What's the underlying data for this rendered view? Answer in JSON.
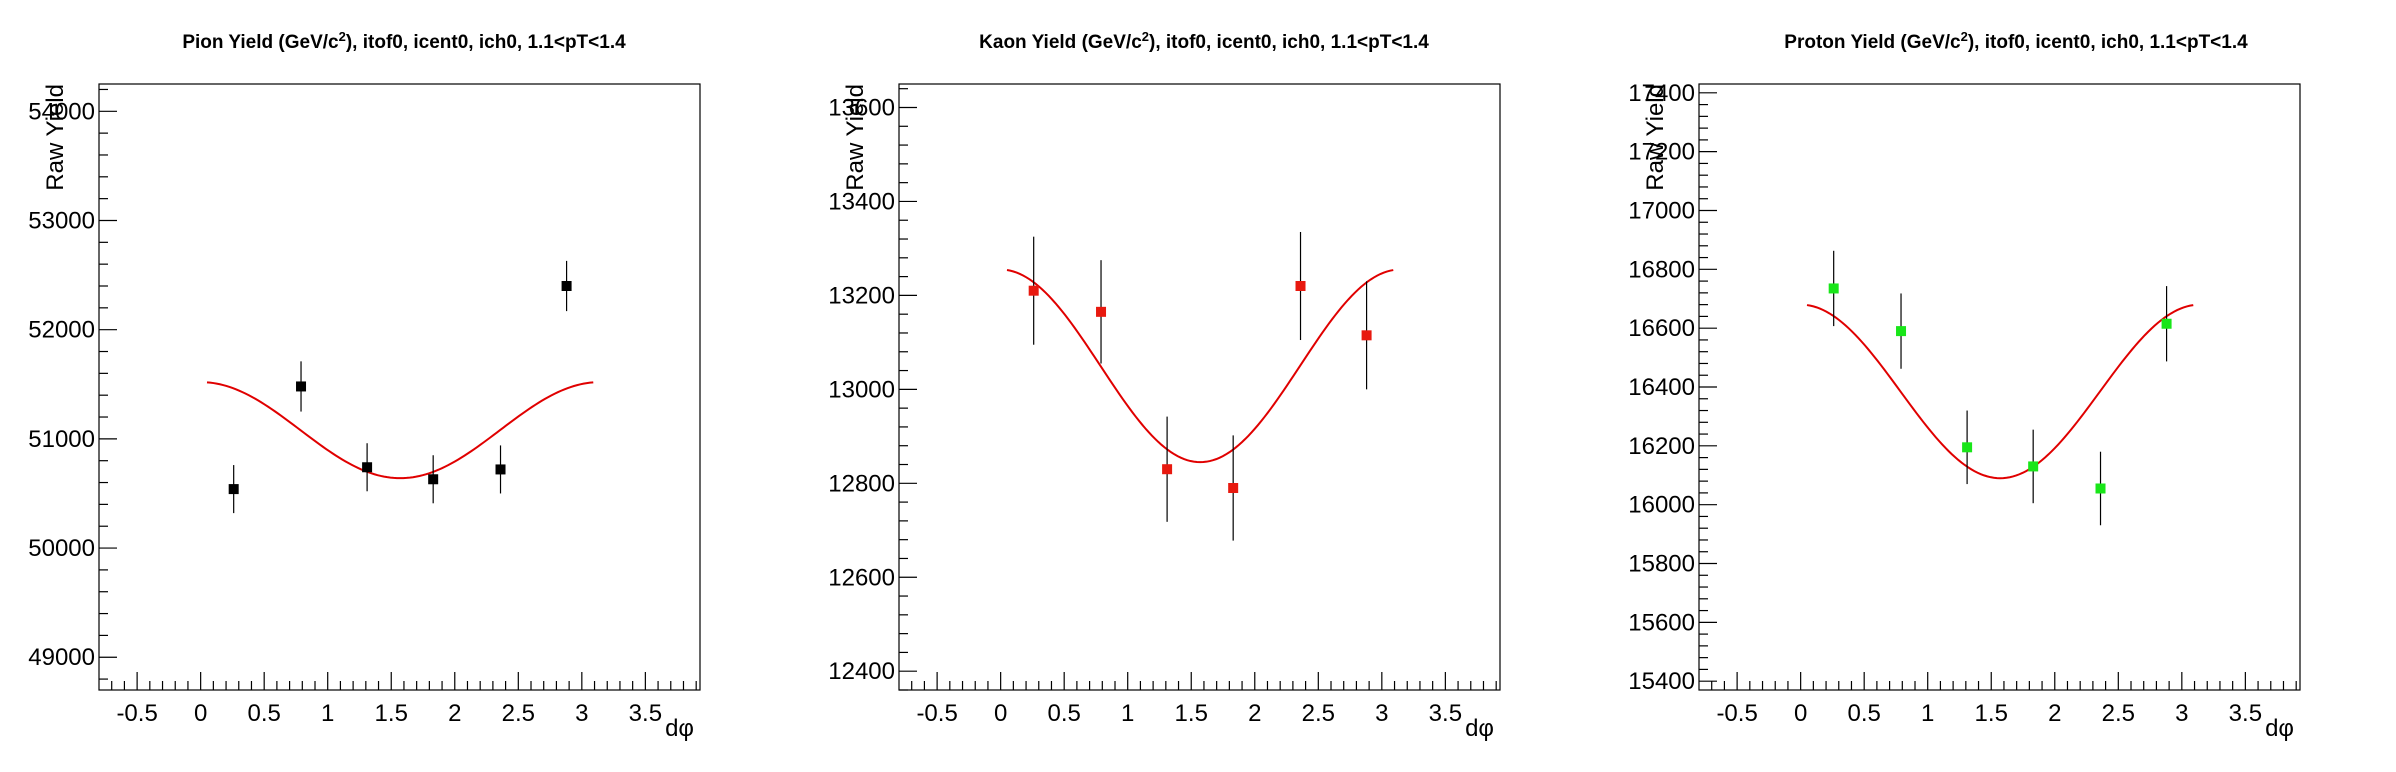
{
  "chart_data": [
    {
      "type": "scatter",
      "title": {
        "prefix": "Pion Yield (GeV/c",
        "sup": "2",
        "suffix": "), itof0, icent0, ich0, 1.1<pT<1.4"
      },
      "xlabel": "dφ",
      "ylabel": "Raw Yield",
      "xlim": [
        -0.8,
        3.93
      ],
      "ylim": [
        48700,
        54250
      ],
      "xticks": [
        -0.5,
        0,
        0.5,
        1,
        1.5,
        2,
        2.5,
        3,
        3.5
      ],
      "xtick_labels": [
        "-0.5",
        "0",
        "0.5",
        "1",
        "1.5",
        "2",
        "2.5",
        "3",
        "3.5"
      ],
      "yticks": [
        49000,
        50000,
        51000,
        52000,
        53000,
        54000
      ],
      "ytick_labels": [
        "49000",
        "50000",
        "51000",
        "52000",
        "53000",
        "54000"
      ],
      "grid": false,
      "marker_color": "#000000",
      "fit_color": "#e00000",
      "series": [
        {
          "x": [
            0.26,
            0.79,
            1.31,
            1.83,
            2.36,
            2.88
          ],
          "y": [
            50540,
            51480,
            50740,
            50630,
            50720,
            52400
          ],
          "err": [
            220,
            230,
            220,
            220,
            220,
            230
          ]
        }
      ],
      "fit": {
        "func": "A + B*cos(2x)",
        "A": 51080,
        "B": 440,
        "xrange": [
          0.05,
          3.09
        ]
      }
    },
    {
      "type": "scatter",
      "title": {
        "prefix": "Kaon Yield (GeV/c",
        "sup": "2",
        "suffix": "), itof0, icent0, ich0, 1.1<pT<1.4"
      },
      "xlabel": "dφ",
      "ylabel": "Raw Yield",
      "xlim": [
        -0.8,
        3.93
      ],
      "ylim": [
        12360,
        13650
      ],
      "xticks": [
        -0.5,
        0,
        0.5,
        1,
        1.5,
        2,
        2.5,
        3,
        3.5
      ],
      "xtick_labels": [
        "-0.5",
        "0",
        "0.5",
        "1",
        "1.5",
        "2",
        "2.5",
        "3",
        "3.5"
      ],
      "yticks": [
        12400,
        12600,
        12800,
        13000,
        13200,
        13400,
        13600
      ],
      "ytick_labels": [
        "12400",
        "12600",
        "12800",
        "13000",
        "13200",
        "13400",
        "13600"
      ],
      "grid": false,
      "marker_color": "#e8190f",
      "fit_color": "#e00000",
      "series": [
        {
          "x": [
            0.26,
            0.79,
            1.31,
            1.83,
            2.36,
            2.88
          ],
          "y": [
            13210,
            13165,
            12830,
            12790,
            13220,
            13115
          ],
          "err": [
            115,
            110,
            112,
            112,
            115,
            115
          ]
        }
      ],
      "fit": {
        "func": "A + B*cos(2x)",
        "A": 13050,
        "B": 205,
        "xrange": [
          0.05,
          3.09
        ]
      }
    },
    {
      "type": "scatter",
      "title": {
        "prefix": "Proton Yield (GeV/c",
        "sup": "2",
        "suffix": "), itof0, icent0, ich0, 1.1<pT<1.4"
      },
      "xlabel": "dφ",
      "ylabel": "Raw Yield",
      "xlim": [
        -0.8,
        3.93
      ],
      "ylim": [
        15370,
        17430
      ],
      "xticks": [
        -0.5,
        0,
        0.5,
        1,
        1.5,
        2,
        2.5,
        3,
        3.5
      ],
      "xtick_labels": [
        "-0.5",
        "0",
        "0.5",
        "1",
        "1.5",
        "2",
        "2.5",
        "3",
        "3.5"
      ],
      "yticks": [
        15400,
        15600,
        15800,
        16000,
        16200,
        16400,
        16600,
        16800,
        17000,
        17200,
        17400
      ],
      "ytick_labels": [
        "15400",
        "15600",
        "15800",
        "16000",
        "16200",
        "16400",
        "16600",
        "16800",
        "17000",
        "17200",
        "17400"
      ],
      "grid": false,
      "marker_color": "#19e619",
      "fit_color": "#e00000",
      "series": [
        {
          "x": [
            0.26,
            0.79,
            1.31,
            1.83,
            2.36,
            2.88
          ],
          "y": [
            16735,
            16590,
            16195,
            16130,
            16055,
            16615
          ],
          "err": [
            128,
            128,
            125,
            125,
            125,
            128
          ]
        }
      ],
      "fit": {
        "func": "A + B*cos(2x)",
        "A": 16385,
        "B": 295,
        "xrange": [
          0.05,
          3.09
        ]
      }
    }
  ]
}
